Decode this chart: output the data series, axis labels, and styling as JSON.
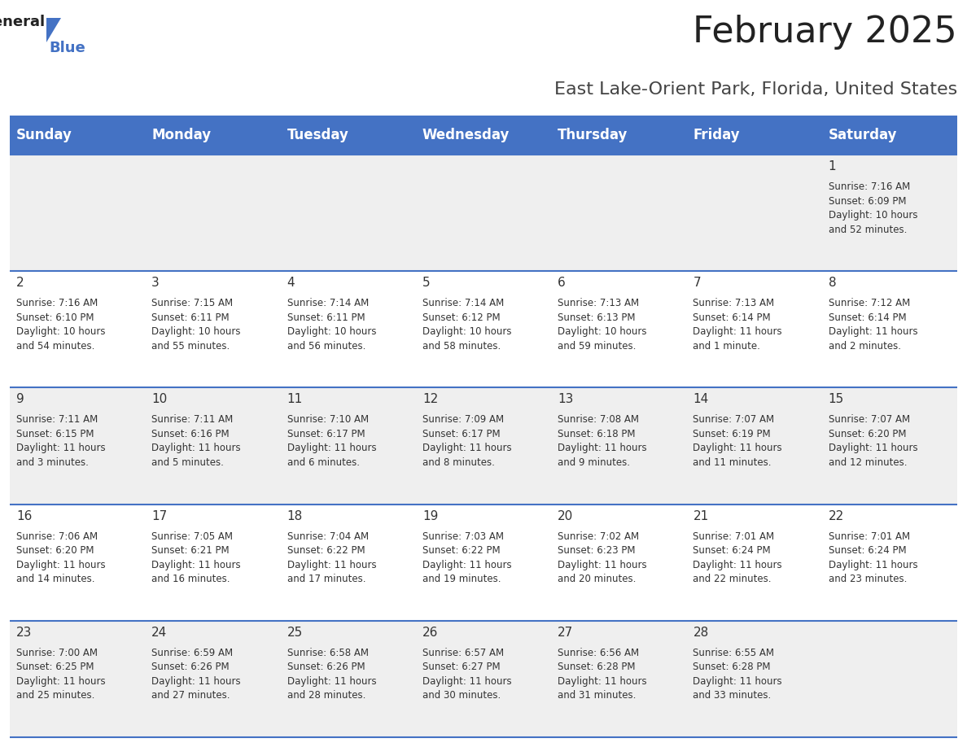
{
  "title": "February 2025",
  "subtitle": "East Lake-Orient Park, Florida, United States",
  "header_bg": "#4472C4",
  "header_text_color": "#FFFFFF",
  "days_of_week": [
    "Sunday",
    "Monday",
    "Tuesday",
    "Wednesday",
    "Thursday",
    "Friday",
    "Saturday"
  ],
  "row_bg_odd": "#EFEFEF",
  "row_bg_even": "#FFFFFF",
  "cell_border_color": "#4472C4",
  "day_number_color": "#333333",
  "info_text_color": "#333333",
  "calendar": [
    [
      null,
      null,
      null,
      null,
      null,
      null,
      {
        "day": 1,
        "sunrise": "7:16 AM",
        "sunset": "6:09 PM",
        "daylight": "10 hours\nand 52 minutes."
      }
    ],
    [
      {
        "day": 2,
        "sunrise": "7:16 AM",
        "sunset": "6:10 PM",
        "daylight": "10 hours\nand 54 minutes."
      },
      {
        "day": 3,
        "sunrise": "7:15 AM",
        "sunset": "6:11 PM",
        "daylight": "10 hours\nand 55 minutes."
      },
      {
        "day": 4,
        "sunrise": "7:14 AM",
        "sunset": "6:11 PM",
        "daylight": "10 hours\nand 56 minutes."
      },
      {
        "day": 5,
        "sunrise": "7:14 AM",
        "sunset": "6:12 PM",
        "daylight": "10 hours\nand 58 minutes."
      },
      {
        "day": 6,
        "sunrise": "7:13 AM",
        "sunset": "6:13 PM",
        "daylight": "10 hours\nand 59 minutes."
      },
      {
        "day": 7,
        "sunrise": "7:13 AM",
        "sunset": "6:14 PM",
        "daylight": "11 hours\nand 1 minute."
      },
      {
        "day": 8,
        "sunrise": "7:12 AM",
        "sunset": "6:14 PM",
        "daylight": "11 hours\nand 2 minutes."
      }
    ],
    [
      {
        "day": 9,
        "sunrise": "7:11 AM",
        "sunset": "6:15 PM",
        "daylight": "11 hours\nand 3 minutes."
      },
      {
        "day": 10,
        "sunrise": "7:11 AM",
        "sunset": "6:16 PM",
        "daylight": "11 hours\nand 5 minutes."
      },
      {
        "day": 11,
        "sunrise": "7:10 AM",
        "sunset": "6:17 PM",
        "daylight": "11 hours\nand 6 minutes."
      },
      {
        "day": 12,
        "sunrise": "7:09 AM",
        "sunset": "6:17 PM",
        "daylight": "11 hours\nand 8 minutes."
      },
      {
        "day": 13,
        "sunrise": "7:08 AM",
        "sunset": "6:18 PM",
        "daylight": "11 hours\nand 9 minutes."
      },
      {
        "day": 14,
        "sunrise": "7:07 AM",
        "sunset": "6:19 PM",
        "daylight": "11 hours\nand 11 minutes."
      },
      {
        "day": 15,
        "sunrise": "7:07 AM",
        "sunset": "6:20 PM",
        "daylight": "11 hours\nand 12 minutes."
      }
    ],
    [
      {
        "day": 16,
        "sunrise": "7:06 AM",
        "sunset": "6:20 PM",
        "daylight": "11 hours\nand 14 minutes."
      },
      {
        "day": 17,
        "sunrise": "7:05 AM",
        "sunset": "6:21 PM",
        "daylight": "11 hours\nand 16 minutes."
      },
      {
        "day": 18,
        "sunrise": "7:04 AM",
        "sunset": "6:22 PM",
        "daylight": "11 hours\nand 17 minutes."
      },
      {
        "day": 19,
        "sunrise": "7:03 AM",
        "sunset": "6:22 PM",
        "daylight": "11 hours\nand 19 minutes."
      },
      {
        "day": 20,
        "sunrise": "7:02 AM",
        "sunset": "6:23 PM",
        "daylight": "11 hours\nand 20 minutes."
      },
      {
        "day": 21,
        "sunrise": "7:01 AM",
        "sunset": "6:24 PM",
        "daylight": "11 hours\nand 22 minutes."
      },
      {
        "day": 22,
        "sunrise": "7:01 AM",
        "sunset": "6:24 PM",
        "daylight": "11 hours\nand 23 minutes."
      }
    ],
    [
      {
        "day": 23,
        "sunrise": "7:00 AM",
        "sunset": "6:25 PM",
        "daylight": "11 hours\nand 25 minutes."
      },
      {
        "day": 24,
        "sunrise": "6:59 AM",
        "sunset": "6:26 PM",
        "daylight": "11 hours\nand 27 minutes."
      },
      {
        "day": 25,
        "sunrise": "6:58 AM",
        "sunset": "6:26 PM",
        "daylight": "11 hours\nand 28 minutes."
      },
      {
        "day": 26,
        "sunrise": "6:57 AM",
        "sunset": "6:27 PM",
        "daylight": "11 hours\nand 30 minutes."
      },
      {
        "day": 27,
        "sunrise": "6:56 AM",
        "sunset": "6:28 PM",
        "daylight": "11 hours\nand 31 minutes."
      },
      {
        "day": 28,
        "sunrise": "6:55 AM",
        "sunset": "6:28 PM",
        "daylight": "11 hours\nand 33 minutes."
      },
      null
    ]
  ],
  "title_fontsize": 32,
  "subtitle_fontsize": 16,
  "header_fontsize": 12,
  "day_num_fontsize": 11,
  "info_fontsize": 8.5,
  "logo_general_fontsize": 13,
  "logo_blue_fontsize": 13
}
